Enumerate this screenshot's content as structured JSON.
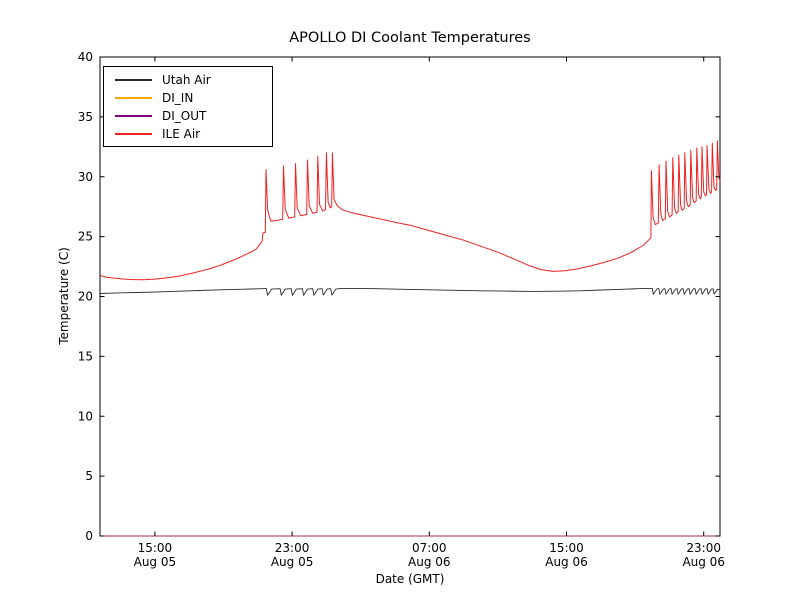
{
  "chart_data": {
    "type": "line",
    "title": "APOLLO DI Coolant Temperatures",
    "xlabel": "Date (GMT)",
    "ylabel": "Temperature (C)",
    "xlim": [
      11.8,
      47.95
    ],
    "ylim": [
      0,
      40
    ],
    "x_encoding": "hours since Aug 05 00:00 GMT",
    "grid": false,
    "x_ticks": [
      {
        "t": 15,
        "time": "15:00",
        "date": "Aug 05"
      },
      {
        "t": 23,
        "time": "23:00",
        "date": "Aug 05"
      },
      {
        "t": 31,
        "time": "07:00",
        "date": "Aug 06"
      },
      {
        "t": 39,
        "time": "15:00",
        "date": "Aug 06"
      },
      {
        "t": 47,
        "time": "23:00",
        "date": "Aug 06"
      }
    ],
    "y_ticks": [
      0,
      5,
      10,
      15,
      20,
      25,
      30,
      35,
      40
    ],
    "legend": {
      "position": "upper left"
    },
    "series": [
      {
        "name": "Utah Air",
        "color": "#2b2b2b",
        "width": 0.9,
        "opacity": 1,
        "points": [
          [
            11.8,
            20.25
          ],
          [
            12.8,
            20.3
          ],
          [
            14,
            20.33
          ],
          [
            15.2,
            20.38
          ],
          [
            16.4,
            20.44
          ],
          [
            17.6,
            20.5
          ],
          [
            18.8,
            20.56
          ],
          [
            20,
            20.6
          ],
          [
            21,
            20.64
          ],
          [
            21.4,
            20.66
          ],
          [
            21.5,
            20.66
          ],
          [
            21.57,
            20.1
          ],
          [
            21.8,
            20.62
          ],
          [
            22.3,
            20.65
          ],
          [
            22.37,
            20.1
          ],
          [
            22.6,
            20.62
          ],
          [
            22.95,
            20.65
          ],
          [
            23.02,
            20.1
          ],
          [
            23.25,
            20.62
          ],
          [
            23.6,
            20.65
          ],
          [
            23.67,
            20.1
          ],
          [
            23.9,
            20.62
          ],
          [
            24.2,
            20.65
          ],
          [
            24.27,
            20.1
          ],
          [
            24.5,
            20.62
          ],
          [
            24.75,
            20.65
          ],
          [
            24.82,
            20.12
          ],
          [
            25.05,
            20.62
          ],
          [
            25.25,
            20.65
          ],
          [
            25.32,
            20.12
          ],
          [
            25.55,
            20.62
          ],
          [
            25.9,
            20.68
          ],
          [
            26.8,
            20.68
          ],
          [
            28,
            20.65
          ],
          [
            29.5,
            20.6
          ],
          [
            31,
            20.56
          ],
          [
            32.5,
            20.52
          ],
          [
            34,
            20.48
          ],
          [
            35.5,
            20.45
          ],
          [
            37,
            20.43
          ],
          [
            38.5,
            20.44
          ],
          [
            39.8,
            20.48
          ],
          [
            41,
            20.54
          ],
          [
            42.2,
            20.6
          ],
          [
            43.3,
            20.66
          ],
          [
            43.8,
            20.68
          ],
          [
            44,
            20.68
          ],
          [
            44.06,
            20.18
          ],
          [
            44.28,
            20.64
          ],
          [
            44.38,
            20.66
          ],
          [
            44.44,
            20.18
          ],
          [
            44.64,
            20.63
          ],
          [
            44.74,
            20.65
          ],
          [
            44.8,
            20.18
          ],
          [
            45,
            20.63
          ],
          [
            45.1,
            20.65
          ],
          [
            45.16,
            20.18
          ],
          [
            45.36,
            20.63
          ],
          [
            45.45,
            20.65
          ],
          [
            45.51,
            20.18
          ],
          [
            45.7,
            20.63
          ],
          [
            45.8,
            20.65
          ],
          [
            45.86,
            20.18
          ],
          [
            46.05,
            20.63
          ],
          [
            46.15,
            20.65
          ],
          [
            46.21,
            20.18
          ],
          [
            46.4,
            20.63
          ],
          [
            46.5,
            20.65
          ],
          [
            46.56,
            20.18
          ],
          [
            46.75,
            20.63
          ],
          [
            46.85,
            20.65
          ],
          [
            46.91,
            20.18
          ],
          [
            47.1,
            20.63
          ],
          [
            47.2,
            20.65
          ],
          [
            47.26,
            20.2
          ],
          [
            47.45,
            20.62
          ],
          [
            47.55,
            20.64
          ],
          [
            47.61,
            20.2
          ],
          [
            47.8,
            20.6
          ],
          [
            47.95,
            20.55
          ]
        ]
      },
      {
        "name": "DI_IN",
        "color": "#ffa500",
        "width": 1,
        "opacity": 1,
        "points": [
          [
            11.8,
            0
          ],
          [
            47.95,
            0
          ]
        ]
      },
      {
        "name": "DI_OUT",
        "color": "#800080",
        "width": 1,
        "opacity": 0.75,
        "points": [
          [
            11.8,
            0
          ],
          [
            47.95,
            0
          ]
        ]
      },
      {
        "name": "ILE Air",
        "color": "#ee2222",
        "width": 1,
        "opacity": 1,
        "points": [
          [
            11.8,
            21.75
          ],
          [
            12.2,
            21.6
          ],
          [
            12.8,
            21.5
          ],
          [
            13.5,
            21.42
          ],
          [
            14.3,
            21.4
          ],
          [
            15,
            21.45
          ],
          [
            15.7,
            21.55
          ],
          [
            16.4,
            21.7
          ],
          [
            17.2,
            21.95
          ],
          [
            18,
            22.25
          ],
          [
            18.8,
            22.6
          ],
          [
            19.6,
            23.05
          ],
          [
            20.3,
            23.5
          ],
          [
            20.9,
            23.95
          ],
          [
            21.25,
            24.6
          ],
          [
            21.3,
            25.3
          ],
          [
            21.44,
            25.35
          ],
          [
            21.48,
            30.6
          ],
          [
            21.58,
            27.2
          ],
          [
            21.75,
            26.3
          ],
          [
            22.1,
            26.35
          ],
          [
            22.45,
            26.45
          ],
          [
            22.5,
            30.9
          ],
          [
            22.6,
            27.3
          ],
          [
            22.8,
            26.55
          ],
          [
            23.15,
            26.65
          ],
          [
            23.2,
            31.1
          ],
          [
            23.3,
            27.4
          ],
          [
            23.5,
            26.75
          ],
          [
            23.85,
            26.85
          ],
          [
            23.9,
            31.4
          ],
          [
            24,
            27.6
          ],
          [
            24.2,
            26.95
          ],
          [
            24.45,
            27.05
          ],
          [
            24.5,
            31.7
          ],
          [
            24.6,
            27.7
          ],
          [
            24.78,
            27.15
          ],
          [
            24.95,
            27.25
          ],
          [
            25,
            32
          ],
          [
            25.1,
            27.9
          ],
          [
            25.22,
            27.4
          ],
          [
            25.31,
            27.5
          ],
          [
            25.35,
            32
          ],
          [
            25.45,
            28.1
          ],
          [
            25.65,
            27.55
          ],
          [
            26,
            27.2
          ],
          [
            26.6,
            26.95
          ],
          [
            27.4,
            26.7
          ],
          [
            28.2,
            26.45
          ],
          [
            29,
            26.2
          ],
          [
            30,
            25.9
          ],
          [
            31,
            25.5
          ],
          [
            32,
            25.1
          ],
          [
            33,
            24.7
          ],
          [
            34,
            24.2
          ],
          [
            35,
            23.7
          ],
          [
            36,
            23.1
          ],
          [
            36.8,
            22.6
          ],
          [
            37.5,
            22.25
          ],
          [
            38.2,
            22.1
          ],
          [
            38.9,
            22.15
          ],
          [
            39.6,
            22.3
          ],
          [
            40.4,
            22.55
          ],
          [
            41.2,
            22.85
          ],
          [
            42,
            23.2
          ],
          [
            42.8,
            23.7
          ],
          [
            43.5,
            24.3
          ],
          [
            43.92,
            24.9
          ],
          [
            43.95,
            30.5
          ],
          [
            44.05,
            26.6
          ],
          [
            44.18,
            26
          ],
          [
            44.35,
            26.15
          ],
          [
            44.4,
            31
          ],
          [
            44.5,
            26.9
          ],
          [
            44.6,
            26.35
          ],
          [
            44.76,
            26.5
          ],
          [
            44.8,
            31.3
          ],
          [
            44.9,
            27.15
          ],
          [
            45,
            26.65
          ],
          [
            45.16,
            26.8
          ],
          [
            45.2,
            31.6
          ],
          [
            45.3,
            27.4
          ],
          [
            45.4,
            26.95
          ],
          [
            45.51,
            27.1
          ],
          [
            45.55,
            31.8
          ],
          [
            45.65,
            27.65
          ],
          [
            45.74,
            27.2
          ],
          [
            45.86,
            27.35
          ],
          [
            45.9,
            32
          ],
          [
            46,
            27.95
          ],
          [
            46.1,
            27.5
          ],
          [
            46.21,
            27.65
          ],
          [
            46.25,
            32.2
          ],
          [
            46.35,
            28.25
          ],
          [
            46.44,
            27.85
          ],
          [
            46.56,
            28
          ],
          [
            46.6,
            32.4
          ],
          [
            46.7,
            28.55
          ],
          [
            46.8,
            28.15
          ],
          [
            46.86,
            28.3
          ],
          [
            46.9,
            32.5
          ],
          [
            47,
            28.75
          ],
          [
            47.1,
            28.4
          ],
          [
            47.16,
            28.5
          ],
          [
            47.2,
            32.6
          ],
          [
            47.3,
            28.95
          ],
          [
            47.4,
            28.6
          ],
          [
            47.46,
            28.75
          ],
          [
            47.5,
            32.8
          ],
          [
            47.6,
            29.15
          ],
          [
            47.7,
            28.85
          ],
          [
            47.76,
            29
          ],
          [
            47.8,
            33
          ],
          [
            47.88,
            30
          ],
          [
            47.95,
            29.6
          ]
        ]
      }
    ]
  }
}
